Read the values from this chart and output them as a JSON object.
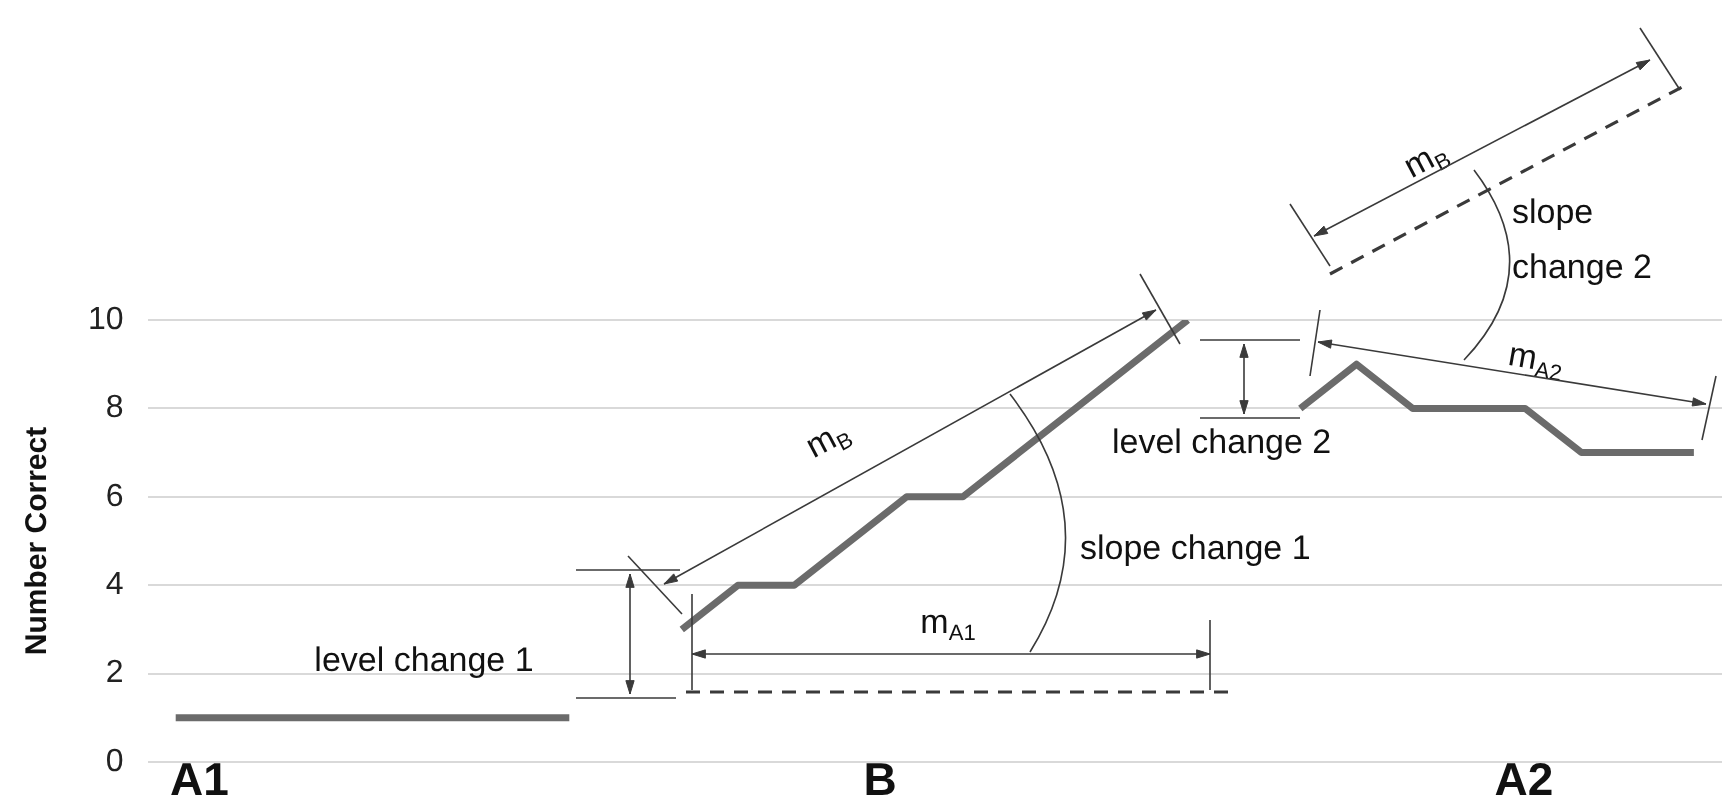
{
  "chart_data": {
    "type": "line",
    "ylabel": "Number Correct",
    "categories": [
      null,
      null,
      null,
      null,
      null,
      null,
      null,
      null,
      null,
      null,
      null,
      null,
      null,
      null,
      null,
      null,
      null,
      null,
      null,
      null,
      null,
      null,
      null,
      null,
      null,
      null,
      null,
      null
    ],
    "series": [
      {
        "color": "#6b6b6b",
        "values": [
          1,
          1,
          1,
          1,
          1,
          1,
          1,
          1,
          null,
          null,
          null,
          null,
          null,
          null,
          null,
          null,
          null,
          null,
          null,
          null,
          null,
          null,
          null,
          null,
          null,
          null,
          null,
          null
        ]
      },
      {
        "color": "#6b6b6b",
        "values": [
          null,
          null,
          null,
          null,
          null,
          null,
          null,
          null,
          null,
          3,
          4,
          4,
          5,
          6,
          6,
          7,
          8,
          9,
          10,
          null,
          null,
          null,
          null,
          null,
          null,
          null,
          null,
          null
        ]
      },
      {
        "color": "#6b6b6b",
        "values": [
          null,
          null,
          null,
          null,
          null,
          null,
          null,
          null,
          null,
          null,
          null,
          null,
          null,
          null,
          null,
          null,
          null,
          null,
          null,
          null,
          8,
          9,
          8,
          8,
          8,
          7,
          7,
          7
        ]
      }
    ],
    "ylim": [
      0,
      10
    ],
    "yticks": [
      0,
      2,
      4,
      6,
      8,
      10
    ],
    "grid": "y",
    "tick_labels": "y",
    "marker": "none",
    "line_style": "solid",
    "annotations": [
      "A1",
      "B",
      "A2",
      "level change 1",
      "slope change 1",
      "level change 2",
      "slope change 2",
      "m$_{B}$",
      "m$_{A1}$",
      "m$_{A2}$",
      "m$_{B}$"
    ]
  }
}
